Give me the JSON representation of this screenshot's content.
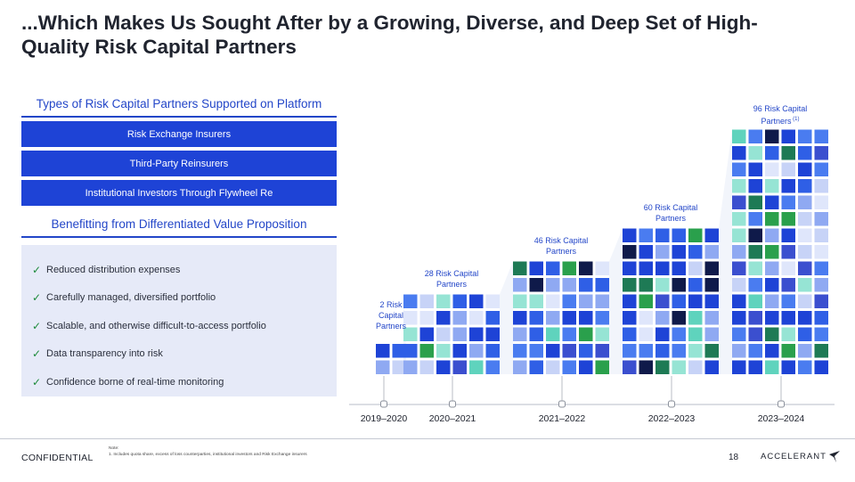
{
  "title": "...Which Makes Us Sought After by a Growing, Diverse, and Deep Set of High-Quality Risk Capital Partners",
  "left": {
    "types_heading": "Types of Risk Capital Partners Supported on Platform",
    "partner_types": [
      "Risk Exchange Insurers",
      "Third-Party Reinsurers",
      "Institutional Investors Through Flywheel Re"
    ],
    "benefits_heading": "Benefitting from Differentiated Value Proposition",
    "check_glyph": "✓",
    "benefits": [
      "Reduced distribution expenses",
      "Carefully managed, diversified portfolio",
      "Scalable, and otherwise difficult-to-access portfolio",
      "Data transparency into risk",
      "Confidence borne of real-time monitoring"
    ]
  },
  "chart_data": {
    "type": "bar",
    "title": "Risk Capital Partners",
    "categories": [
      "2019–2020",
      "2020–2021",
      "2021–2022",
      "2022–2023",
      "2023–2024"
    ],
    "values": [
      2,
      28,
      46,
      60,
      96
    ],
    "labels": [
      "2 Risk Capital Partners",
      "28 Risk Capital Partners",
      "46 Risk Capital Partners",
      "60 Risk Capital Partners",
      "96 Risk Capital Partners"
    ],
    "label_footnote": "(1)",
    "label_lines": [
      [
        "2 Risk",
        "Capital",
        "Partners"
      ],
      [
        "28 Risk Capital",
        "Partners"
      ],
      [
        "46 Risk Capital",
        "Partners"
      ],
      [
        "60 Risk Capital",
        "Partners"
      ],
      [
        "96 Risk Capital",
        "Partners"
      ]
    ],
    "palette": [
      "#1e43d6",
      "#2f5fe6",
      "#4a7cf0",
      "#8fa9f2",
      "#c7d3f7",
      "#5fd3bd",
      "#96e4d4",
      "#1e7a55",
      "#2aa04c",
      "#0f1a4a",
      "#16224f",
      "#3b4fcf",
      "#dfe6fb"
    ]
  },
  "footer": {
    "confidential": "CONFIDENTIAL",
    "note_heading": "Note:",
    "note_text": "1.   Includes quota share, excess of loss counterparties, institutional investors and Risk Exchange insurers",
    "page_number": "18",
    "logo_text": "ACCELERANT"
  }
}
